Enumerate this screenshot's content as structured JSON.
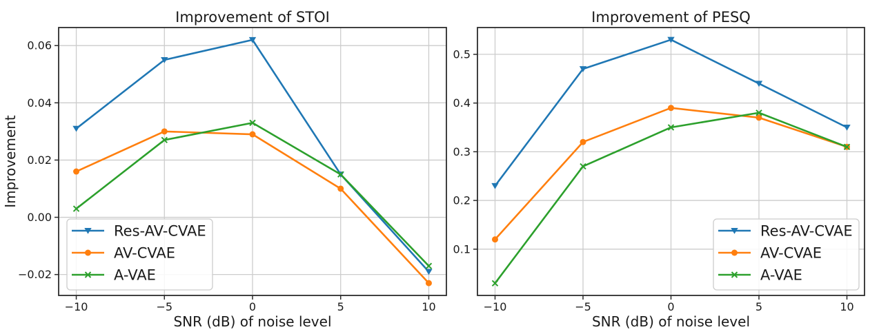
{
  "style": {
    "background": "#ffffff",
    "grid_color": "#cccccc",
    "spine_color": "#2b2b2b",
    "text_color": "#1a1a1a",
    "legend_border": "#cccccc",
    "legend_bg": "#ffffff",
    "series_colors": {
      "blue": "#1f77b4",
      "orange": "#ff7f0e",
      "green": "#2ca02c"
    }
  },
  "chart_data": [
    {
      "type": "line",
      "title": "Improvement of STOI",
      "xlabel": "SNR (dB) of noise level",
      "ylabel": "Improvement",
      "x": [
        -10,
        -5,
        0,
        5,
        10
      ],
      "xlim": [
        -11,
        11
      ],
      "ylim": [
        -0.0273,
        0.0663
      ],
      "grid": true,
      "legend_position": "lower-left",
      "xticks": [
        {
          "v": -10,
          "label": "−10"
        },
        {
          "v": -5,
          "label": "−5"
        },
        {
          "v": 0,
          "label": "0"
        },
        {
          "v": 5,
          "label": "5"
        },
        {
          "v": 10,
          "label": "10"
        }
      ],
      "yticks": [
        {
          "v": -0.02,
          "label": "−0.02"
        },
        {
          "v": 0.0,
          "label": "0.00"
        },
        {
          "v": 0.02,
          "label": "0.02"
        },
        {
          "v": 0.04,
          "label": "0.04"
        },
        {
          "v": 0.06,
          "label": "0.06"
        }
      ],
      "series": [
        {
          "name": "Res-AV-CVAE",
          "color": "#1f77b4",
          "marker": "triangle-down",
          "values": [
            0.031,
            0.055,
            0.062,
            0.015,
            -0.019
          ]
        },
        {
          "name": "AV-CVAE",
          "color": "#ff7f0e",
          "marker": "circle",
          "values": [
            0.016,
            0.03,
            0.029,
            0.01,
            -0.023
          ]
        },
        {
          "name": "A-VAE",
          "color": "#2ca02c",
          "marker": "x",
          "values": [
            0.003,
            0.027,
            0.033,
            0.015,
            -0.017
          ]
        }
      ]
    },
    {
      "type": "line",
      "title": "Improvement of PESQ",
      "xlabel": "SNR (dB) of noise level",
      "ylabel": "",
      "x": [
        -10,
        -5,
        0,
        5,
        10
      ],
      "xlim": [
        -11,
        11
      ],
      "ylim": [
        0.005,
        0.555
      ],
      "grid": true,
      "legend_position": "lower-right",
      "xticks": [
        {
          "v": -10,
          "label": "−10"
        },
        {
          "v": -5,
          "label": "−5"
        },
        {
          "v": 0,
          "label": "0"
        },
        {
          "v": 5,
          "label": "5"
        },
        {
          "v": 10,
          "label": "10"
        }
      ],
      "yticks": [
        {
          "v": 0.1,
          "label": "0.1"
        },
        {
          "v": 0.2,
          "label": "0.2"
        },
        {
          "v": 0.3,
          "label": "0.3"
        },
        {
          "v": 0.4,
          "label": "0.4"
        },
        {
          "v": 0.5,
          "label": "0.5"
        }
      ],
      "series": [
        {
          "name": "Res-AV-CVAE",
          "color": "#1f77b4",
          "marker": "triangle-down",
          "values": [
            0.23,
            0.47,
            0.53,
            0.44,
            0.35
          ]
        },
        {
          "name": "AV-CVAE",
          "color": "#ff7f0e",
          "marker": "circle",
          "values": [
            0.12,
            0.32,
            0.39,
            0.37,
            0.31
          ]
        },
        {
          "name": "A-VAE",
          "color": "#2ca02c",
          "marker": "x",
          "values": [
            0.03,
            0.27,
            0.35,
            0.38,
            0.31
          ]
        }
      ]
    }
  ]
}
